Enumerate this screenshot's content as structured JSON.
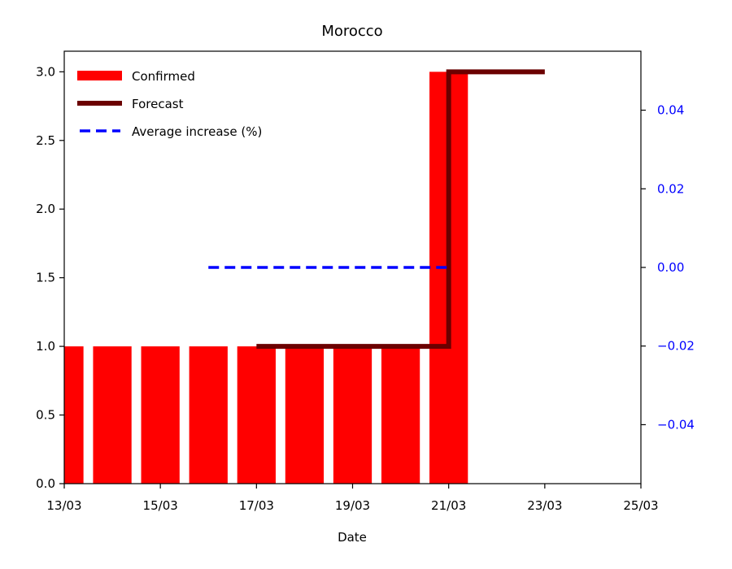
{
  "chart_data": {
    "type": "bar",
    "title": "Morocco",
    "xlabel": "Date",
    "ylabel": "",
    "x_ticks": [
      "13/03",
      "15/03",
      "17/03",
      "19/03",
      "21/03",
      "23/03",
      "25/03"
    ],
    "xlim": [
      "13/03",
      "25/03"
    ],
    "ylim": [
      0.0,
      3.15
    ],
    "y_ticks": [
      "0.0",
      "0.5",
      "1.0",
      "1.5",
      "2.0",
      "2.5",
      "3.0"
    ],
    "y2lim": [
      -0.055,
      0.055
    ],
    "y2_ticks": [
      "−0.04",
      "−0.02",
      "0.00",
      "0.02",
      "0.04"
    ],
    "grid": false,
    "legend_position": "upper-left",
    "colors": {
      "confirmed": "#ff0000",
      "forecast": "#6b0000",
      "average": "#0000ff",
      "right_axis": "#0000ff"
    },
    "confirmed": {
      "name": "Confirmed",
      "x": [
        "13/03",
        "14/03",
        "15/03",
        "16/03",
        "17/03",
        "18/03",
        "19/03",
        "20/03",
        "21/03"
      ],
      "values": [
        1,
        1,
        1,
        1,
        1,
        1,
        1,
        1,
        3
      ]
    },
    "forecast": {
      "name": "Forecast",
      "x": [
        "17/03",
        "21/03",
        "21/03",
        "23/03"
      ],
      "values": [
        1,
        1,
        3,
        3
      ]
    },
    "average_increase": {
      "name": "Average increase (%)",
      "x": [
        "16/03",
        "21/03"
      ],
      "values": [
        0.0,
        0.0
      ]
    }
  }
}
